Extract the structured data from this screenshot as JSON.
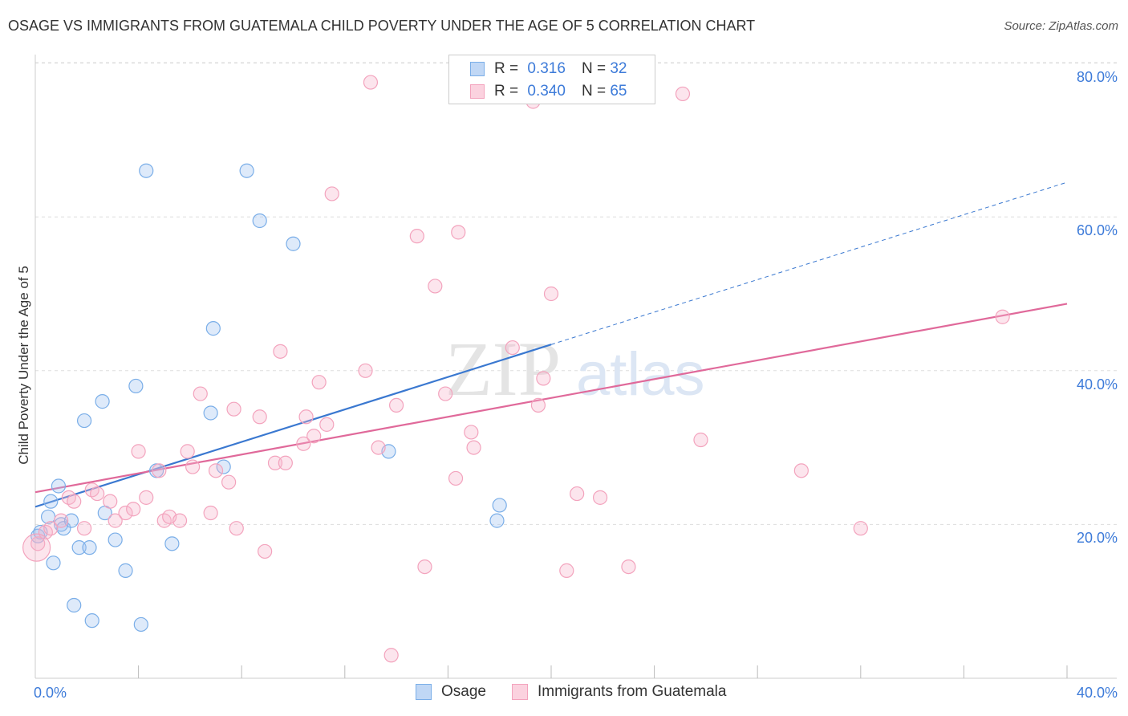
{
  "title": "OSAGE VS IMMIGRANTS FROM GUATEMALA CHILD POVERTY UNDER THE AGE OF 5 CORRELATION CHART",
  "source": "Source: ZipAtlas.com",
  "watermark": {
    "zip": "ZIP",
    "atlas": "atlas"
  },
  "legend": {
    "rows": [
      {
        "r_label": "R =",
        "r_value": "0.316",
        "n_label": "N =",
        "n_value": "32"
      },
      {
        "r_label": "R =",
        "r_value": "0.340",
        "n_label": "N =",
        "n_value": "65"
      }
    ]
  },
  "chart_data": {
    "type": "scatter",
    "ylabel": "Child Poverty Under the Age of 5",
    "xlabel": "",
    "xlim": [
      0,
      40
    ],
    "ylim": [
      0,
      80
    ],
    "x_tick_labels": [
      "0.0%",
      "40.0%"
    ],
    "y_tick_labels": [
      "20.0%",
      "40.0%",
      "60.0%",
      "80.0%"
    ],
    "y_ticks": [
      20,
      40,
      60,
      80
    ],
    "grid": true,
    "legend_position": "top-center",
    "series": [
      {
        "name": "Osage",
        "color": "#7aaee8",
        "line_color": "#3a78d0",
        "points": [
          [
            0.1,
            18.5
          ],
          [
            0.2,
            19
          ],
          [
            0.5,
            21
          ],
          [
            0.6,
            23
          ],
          [
            0.7,
            15
          ],
          [
            0.9,
            25
          ],
          [
            1.0,
            20
          ],
          [
            1.1,
            19.5
          ],
          [
            1.4,
            20.5
          ],
          [
            1.5,
            9.5
          ],
          [
            1.7,
            17
          ],
          [
            1.9,
            33.5
          ],
          [
            2.1,
            17
          ],
          [
            2.2,
            7.5
          ],
          [
            2.6,
            36
          ],
          [
            2.7,
            21.5
          ],
          [
            3.1,
            18
          ],
          [
            3.5,
            14
          ],
          [
            3.9,
            38
          ],
          [
            4.1,
            7
          ],
          [
            4.3,
            66
          ],
          [
            4.7,
            27
          ],
          [
            5.3,
            17.5
          ],
          [
            6.8,
            34.5
          ],
          [
            6.9,
            45.5
          ],
          [
            7.3,
            27.5
          ],
          [
            8.2,
            66
          ],
          [
            8.7,
            59.5
          ],
          [
            10.0,
            56.5
          ],
          [
            13.7,
            29.5
          ],
          [
            17.9,
            20.5
          ],
          [
            18.0,
            22.5
          ]
        ],
        "trend": {
          "x": [
            0,
            20
          ],
          "y": [
            22.3,
            43.4
          ]
        },
        "trend_extension": {
          "x": [
            20,
            40
          ],
          "y": [
            43.4,
            64.5
          ]
        }
      },
      {
        "name": "Immigrants from Guatemala",
        "color": "#f3a3bd",
        "line_color": "#e0699a",
        "points": [
          [
            0.1,
            17.5
          ],
          [
            0.4,
            19
          ],
          [
            0.6,
            19.5
          ],
          [
            1.0,
            20.5
          ],
          [
            1.3,
            23.5
          ],
          [
            1.5,
            23
          ],
          [
            1.9,
            19.5
          ],
          [
            2.2,
            24.5
          ],
          [
            2.4,
            24
          ],
          [
            2.9,
            23
          ],
          [
            3.1,
            20.5
          ],
          [
            3.5,
            21.5
          ],
          [
            3.8,
            22
          ],
          [
            4.0,
            29.5
          ],
          [
            4.3,
            23.5
          ],
          [
            4.8,
            27
          ],
          [
            5.0,
            20.5
          ],
          [
            5.2,
            21
          ],
          [
            5.6,
            20.5
          ],
          [
            5.9,
            29.5
          ],
          [
            6.1,
            27.5
          ],
          [
            6.4,
            37
          ],
          [
            6.8,
            21.5
          ],
          [
            7.0,
            27
          ],
          [
            7.5,
            25.5
          ],
          [
            7.7,
            35
          ],
          [
            7.8,
            19.5
          ],
          [
            8.7,
            34
          ],
          [
            8.9,
            16.5
          ],
          [
            9.3,
            28
          ],
          [
            9.7,
            28
          ],
          [
            9.5,
            42.5
          ],
          [
            10.5,
            34
          ],
          [
            10.4,
            30.5
          ],
          [
            10.8,
            31.5
          ],
          [
            11.0,
            38.5
          ],
          [
            11.3,
            33
          ],
          [
            11.5,
            63
          ],
          [
            12.8,
            40
          ],
          [
            13.0,
            77.5
          ],
          [
            13.3,
            30
          ],
          [
            13.8,
            3
          ],
          [
            14.0,
            35.5
          ],
          [
            14.8,
            57.5
          ],
          [
            15.1,
            14.5
          ],
          [
            15.5,
            51
          ],
          [
            15.9,
            37
          ],
          [
            16.3,
            26
          ],
          [
            16.4,
            58
          ],
          [
            16.9,
            32
          ],
          [
            17.0,
            30
          ],
          [
            18.5,
            43
          ],
          [
            19.3,
            75
          ],
          [
            19.5,
            35.5
          ],
          [
            19.7,
            39
          ],
          [
            20.0,
            50
          ],
          [
            20.6,
            14
          ],
          [
            21.0,
            24
          ],
          [
            21.9,
            23.5
          ],
          [
            23.0,
            14.5
          ],
          [
            25.1,
            76
          ],
          [
            25.8,
            31
          ],
          [
            29.7,
            27
          ],
          [
            32.0,
            19.5
          ],
          [
            37.5,
            47
          ]
        ],
        "trend": {
          "x": [
            0,
            40
          ],
          "y": [
            24.2,
            48.7
          ]
        }
      }
    ]
  }
}
